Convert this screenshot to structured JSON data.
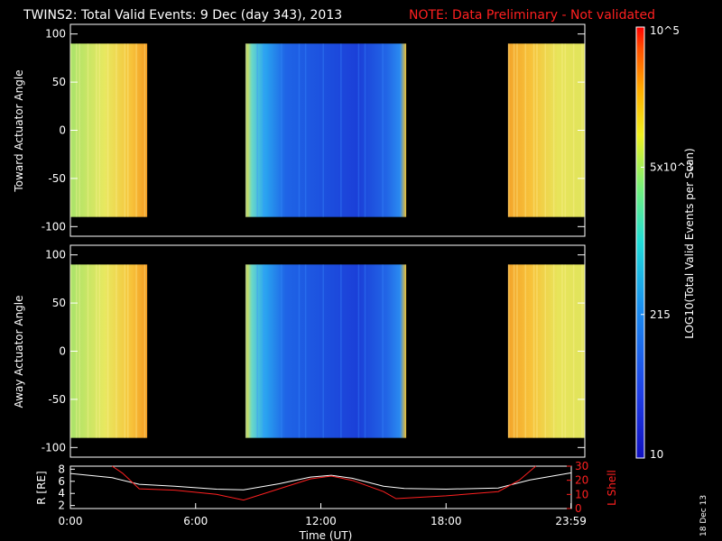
{
  "title": {
    "main": "TWINS2: Total Valid Events:  9 Dec (day 343), 2013",
    "note": "NOTE: Data Preliminary - Not validated",
    "note_color": "#ff2020"
  },
  "stamp": "18 Dec 13",
  "chart_data": [
    {
      "type": "heatmap",
      "ylabel": "Toward Actuator Angle",
      "ylim": [
        -110,
        110
      ],
      "yticks": [
        "100",
        "50",
        "0",
        "-50",
        "-100"
      ],
      "xlim_hours": [
        0,
        24
      ],
      "angle_range": [
        -90,
        90
      ],
      "data_blocks": [
        {
          "start": "0:00",
          "end": "3:35",
          "level": "high"
        },
        {
          "start": "8:10",
          "end": "15:40",
          "level": "low"
        },
        {
          "start": "20:25",
          "end": "23:59",
          "level": "high"
        }
      ]
    },
    {
      "type": "heatmap",
      "ylabel": "Away Actuator Angle",
      "ylim": [
        -110,
        110
      ],
      "yticks": [
        "100",
        "50",
        "0",
        "-50",
        "-100"
      ],
      "xlim_hours": [
        0,
        24
      ],
      "angle_range": [
        -90,
        90
      ],
      "data_blocks": [
        {
          "start": "0:00",
          "end": "3:35",
          "level": "high"
        },
        {
          "start": "8:10",
          "end": "15:40",
          "level": "low"
        },
        {
          "start": "20:25",
          "end": "23:59",
          "level": "high"
        }
      ]
    },
    {
      "type": "line",
      "ylabel_left": "R [RE]",
      "ylabel_right": "L Shell",
      "left_ticks": [
        "8",
        "6",
        "4",
        "2"
      ],
      "right_ticks": [
        "30",
        "20",
        "10",
        "0"
      ],
      "ylim_left": [
        1.5,
        8.5
      ],
      "ylim_right": [
        0,
        30
      ],
      "xlabel": "Time (UT)",
      "xticks": [
        "0:00",
        "6:00",
        "12:00",
        "18:00",
        "23:59"
      ],
      "series": [
        {
          "name": "R",
          "color": "#ffffff",
          "axis": "left",
          "x": [
            0,
            2,
            3.3,
            5,
            7,
            8.3,
            10,
            11.5,
            12.5,
            13.5,
            15,
            16,
            18,
            20.5,
            22,
            24
          ],
          "y": [
            7.3,
            6.6,
            5.5,
            5.2,
            4.7,
            4.6,
            5.6,
            6.7,
            7.0,
            6.5,
            5.2,
            4.8,
            4.7,
            4.9,
            6.2,
            7.4
          ]
        },
        {
          "name": "L Shell",
          "color": "#ff2020",
          "axis": "right",
          "x": [
            2.0,
            2.5,
            3.3,
            5,
            7,
            8.3,
            10,
            11.5,
            12.5,
            13.5,
            15,
            15.6,
            18,
            20.5,
            21.5,
            22.3
          ],
          "y": [
            30,
            25,
            14,
            13,
            10,
            6,
            14,
            21,
            23,
            20,
            12,
            7,
            9,
            12,
            20,
            30
          ]
        }
      ]
    }
  ],
  "colorbar": {
    "label": "LOG10(Total Valid Events per Scan)",
    "ticks": [
      {
        "text": "10",
        "value": 10
      },
      {
        "text": "215",
        "value": 215
      },
      {
        "text": "5x10^3",
        "value": 5000
      },
      {
        "text": "10^5",
        "value": 100000
      }
    ],
    "range": [
      10,
      100000
    ]
  }
}
